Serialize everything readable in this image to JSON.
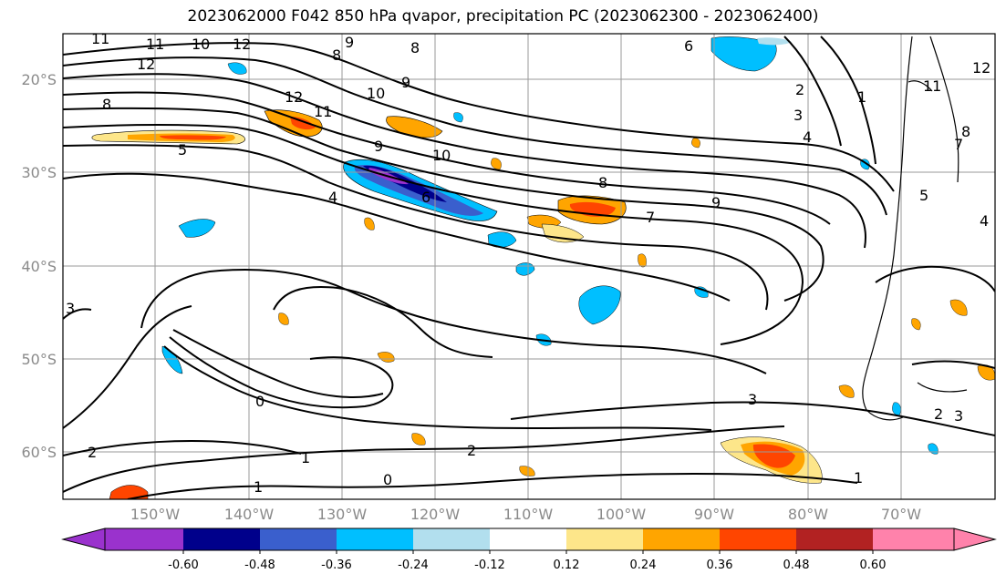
{
  "title": "2023062000 F042 850 hPa qvapor, precipitation PC (2023062300 - 2023062400)",
  "map": {
    "lon_ticks": [
      "150°W",
      "140°W",
      "130°W",
      "120°W",
      "110°W",
      "100°W",
      "90°W",
      "80°W",
      "70°W"
    ],
    "lat_ticks": [
      "20°S",
      "30°S",
      "40°S",
      "50°S",
      "60°S"
    ],
    "contour_labels": [
      {
        "text": "11"
      },
      {
        "text": "11"
      },
      {
        "text": "10"
      },
      {
        "text": "12"
      },
      {
        "text": "12"
      },
      {
        "text": "9"
      },
      {
        "text": "8"
      },
      {
        "text": "8"
      },
      {
        "text": "8"
      },
      {
        "text": "12"
      },
      {
        "text": "11"
      },
      {
        "text": "10"
      },
      {
        "text": "9"
      },
      {
        "text": "5"
      },
      {
        "text": "10"
      },
      {
        "text": "9"
      },
      {
        "text": "4"
      },
      {
        "text": "6"
      },
      {
        "text": "8"
      },
      {
        "text": "7"
      },
      {
        "text": "9"
      },
      {
        "text": "6"
      },
      {
        "text": "2"
      },
      {
        "text": "1"
      },
      {
        "text": "3"
      },
      {
        "text": "4"
      },
      {
        "text": "3"
      },
      {
        "text": "0"
      },
      {
        "text": "1"
      },
      {
        "text": "2"
      },
      {
        "text": "0"
      },
      {
        "text": "1"
      },
      {
        "text": "3"
      },
      {
        "text": "2"
      },
      {
        "text": "1"
      },
      {
        "text": "2"
      },
      {
        "text": "3"
      },
      {
        "text": "4"
      },
      {
        "text": "5"
      },
      {
        "text": "12"
      },
      {
        "text": "11"
      },
      {
        "text": "7"
      },
      {
        "text": "8"
      }
    ]
  },
  "colorbar": {
    "levels": [
      "-0.60",
      "-0.48",
      "-0.36",
      "-0.24",
      "-0.12",
      "0.12",
      "0.24",
      "0.36",
      "0.48",
      "0.60"
    ],
    "colors": [
      "#9a32cd",
      "#00008b",
      "#3a5fcd",
      "#00bfff",
      "#b2dfee",
      "#ffffff",
      "#fde68a",
      "#ffa500",
      "#ff4500",
      "#b22222",
      "#ff82ab"
    ]
  }
}
